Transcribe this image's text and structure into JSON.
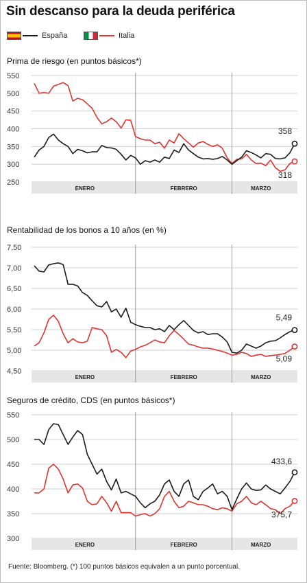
{
  "title": "Sin descanso para la deuda periférica",
  "legend": [
    {
      "name": "España",
      "color": "#1a1a1a",
      "icon": "spain-flag-icon"
    },
    {
      "name": "Italia",
      "color": "#e0332d",
      "icon": "italy-flag-icon"
    }
  ],
  "source": "Fuente: Bloomberg. (*) 100 puntos básicos equivalen a un punto porcentual.",
  "chart_data": [
    {
      "type": "line",
      "title": "Prima de riesgo (en puntos básicos*)",
      "ylim": [
        250,
        550
      ],
      "yticks": [
        "550",
        "500",
        "450",
        "400",
        "350",
        "300",
        "250"
      ],
      "ytick_values": [
        550,
        500,
        450,
        400,
        350,
        300,
        250
      ],
      "months": [
        "ENERO",
        "FEBRERO",
        "MARZO"
      ],
      "month_bounds": [
        0,
        21,
        41,
        53
      ],
      "grid": true,
      "series": [
        {
          "name": "España",
          "color": "#1a1a1a",
          "end_label": "358",
          "values": [
            320,
            340,
            350,
            375,
            385,
            368,
            358,
            350,
            330,
            342,
            338,
            332,
            335,
            335,
            353,
            347,
            346,
            342,
            328,
            312,
            325,
            318,
            300,
            310,
            306,
            312,
            306,
            320,
            316,
            340,
            333,
            358,
            340,
            330,
            320,
            315,
            316,
            314,
            316,
            322,
            312,
            300,
            310,
            320,
            338,
            333,
            326,
            318,
            330,
            328,
            316,
            315,
            318,
            332,
            358
          ]
        },
        {
          "name": "Italia",
          "color": "#e0332d",
          "end_label": "318",
          "values": [
            528,
            500,
            502,
            500,
            520,
            525,
            530,
            522,
            478,
            486,
            482,
            470,
            458,
            432,
            414,
            420,
            430,
            420,
            402,
            425,
            424,
            378,
            372,
            368,
            368,
            358,
            362,
            345,
            368,
            360,
            386,
            372,
            360,
            348,
            360,
            364,
            356,
            350,
            355,
            345,
            318,
            302,
            314,
            315,
            328,
            312,
            302,
            303,
            296,
            312,
            290,
            280,
            284,
            302,
            308
          ]
        }
      ]
    },
    {
      "type": "line",
      "title": "Rentabilidad de los bonos a 10 años (en %)",
      "ylim": [
        4.5,
        7.5
      ],
      "yticks": [
        "7,50",
        "7,00",
        "6,50",
        "6,00",
        "5,50",
        "5,00",
        "4,50"
      ],
      "ytick_values": [
        7.5,
        7.0,
        6.5,
        6.0,
        5.5,
        5.0,
        4.5
      ],
      "months": [
        "ENERO",
        "FEBRERO",
        "MARZO"
      ],
      "month_bounds": [
        0,
        21,
        41,
        53
      ],
      "grid": true,
      "series": [
        {
          "name": "España",
          "color": "#1a1a1a",
          "end_label": "5,49",
          "values": [
            7.05,
            6.92,
            6.9,
            7.07,
            7.1,
            7.12,
            7.08,
            6.6,
            6.6,
            6.56,
            6.4,
            6.33,
            6.2,
            6.08,
            6.05,
            6.18,
            5.93,
            6.0,
            5.8,
            6.02,
            5.68,
            5.62,
            5.58,
            5.55,
            5.55,
            5.5,
            5.52,
            5.45,
            5.6,
            5.5,
            5.62,
            5.72,
            5.6,
            5.48,
            5.42,
            5.45,
            5.38,
            5.4,
            5.4,
            5.32,
            5.2,
            4.95,
            4.93,
            5.0,
            5.15,
            5.1,
            5.05,
            5.1,
            5.18,
            5.22,
            5.23,
            5.3,
            5.38,
            5.45,
            5.49
          ]
        },
        {
          "name": "Italia",
          "color": "#e0332d",
          "end_label": "5,09",
          "values": [
            5.1,
            5.18,
            5.42,
            5.75,
            5.85,
            5.7,
            5.4,
            5.18,
            5.28,
            5.2,
            5.18,
            5.22,
            5.55,
            5.52,
            5.5,
            5.35,
            4.95,
            5.02,
            4.95,
            4.82,
            4.98,
            5.02,
            5.08,
            5.12,
            5.18,
            5.25,
            5.2,
            5.18,
            5.35,
            5.48,
            5.38,
            5.27,
            5.15,
            5.12,
            5.08,
            5.05,
            5.05,
            5.03,
            5.0,
            4.97,
            4.93,
            4.88,
            4.9,
            4.95,
            4.92,
            4.85,
            4.88,
            4.9,
            4.85,
            4.87,
            4.88,
            4.9,
            4.92,
            5.0,
            5.09
          ]
        }
      ]
    },
    {
      "type": "line",
      "title": "Seguros de crédito, CDS (en puntos básicos*)",
      "ylim": [
        300,
        550
      ],
      "yticks": [
        "550",
        "500",
        "450",
        "400",
        "350",
        "300"
      ],
      "ytick_values": [
        550,
        500,
        450,
        400,
        350,
        300
      ],
      "months": [
        "ENERO",
        "FEBRERO",
        "MARZO"
      ],
      "month_bounds": [
        0,
        21,
        41,
        53
      ],
      "grid": true,
      "series": [
        {
          "name": "España",
          "color": "#1a1a1a",
          "end_label": "433,6",
          "values": [
            500,
            500,
            490,
            520,
            532,
            530,
            510,
            490,
            505,
            518,
            510,
            470,
            450,
            430,
            440,
            415,
            398,
            420,
            392,
            395,
            390,
            385,
            372,
            362,
            370,
            375,
            388,
            410,
            418,
            395,
            385,
            410,
            418,
            385,
            378,
            395,
            402,
            410,
            390,
            395,
            385,
            358,
            380,
            400,
            412,
            400,
            397,
            398,
            408,
            400,
            395,
            390,
            402,
            415,
            433.6
          ]
        },
        {
          "name": "Italia",
          "color": "#e0332d",
          "end_label": "375,7",
          "values": [
            392,
            392,
            400,
            442,
            450,
            440,
            420,
            392,
            408,
            410,
            402,
            375,
            368,
            370,
            385,
            372,
            355,
            375,
            352,
            352,
            352,
            345,
            348,
            350,
            345,
            350,
            360,
            385,
            395,
            375,
            362,
            365,
            375,
            372,
            368,
            368,
            365,
            360,
            358,
            362,
            360,
            355,
            370,
            375,
            385,
            372,
            368,
            375,
            368,
            360,
            358,
            350,
            360,
            365,
            375.7
          ]
        }
      ]
    }
  ]
}
